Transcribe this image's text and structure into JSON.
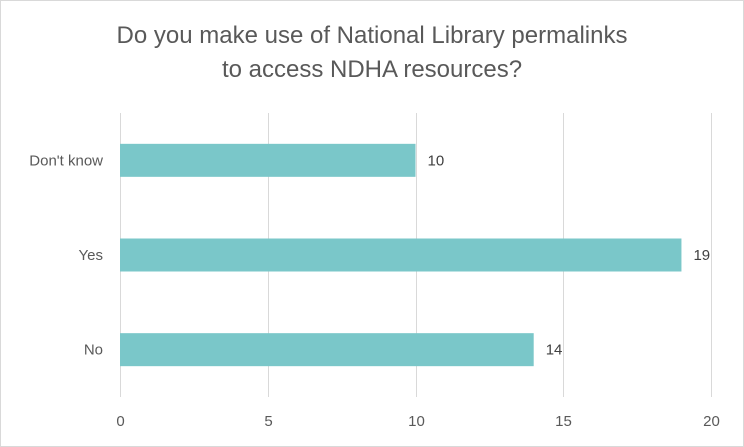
{
  "chart_data": {
    "type": "bar",
    "orientation": "horizontal",
    "title_lines": [
      "Do you make use of National Library permalinks",
      "to access NDHA resources?"
    ],
    "categories": [
      "Don't know",
      "Yes",
      "No"
    ],
    "values": [
      10,
      19,
      14
    ],
    "data_labels": [
      "10",
      "19",
      "14"
    ],
    "xlim": [
      0,
      20
    ],
    "x_ticks": [
      0,
      5,
      10,
      15,
      20
    ],
    "grid": "vertical",
    "legend": "none",
    "bar_color": "#7ac7c9",
    "gridline_color": "#d9d9d9",
    "text_color": "#595959"
  }
}
